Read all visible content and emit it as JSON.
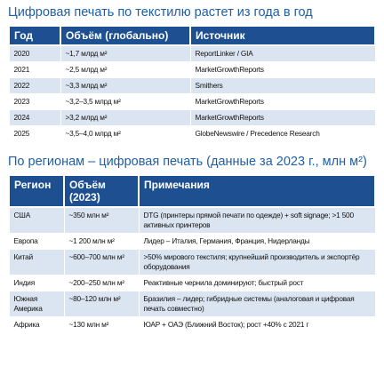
{
  "title": "Цифровая печать по текстилю растет из года в год",
  "table": {
    "headers": [
      "Год",
      "Объём (глобально)",
      "Источник"
    ],
    "rows": [
      [
        "2020",
        "~1,7 млрд м²",
        "ReportLinker / GIA"
      ],
      [
        "2021",
        "~2,5 млрд м²",
        "MarketGrowthReports"
      ],
      [
        "2022",
        "~3,3 млрд м²",
        "Smithers"
      ],
      [
        "2023",
        "~3,2–3,5 млрд м²",
        "MarketGrowthReports"
      ],
      [
        "2024",
        ">3,2 млрд м²",
        "MarketGrowthReports"
      ],
      [
        "2025",
        "~3,5–4,0 млрд м²",
        "GlobeNewswire / Precedence Research"
      ]
    ]
  },
  "title2": "По регионам – цифровая печать (данные за 2023 г., млн м²)",
  "table2": {
    "headers": [
      "Регион",
      "Объём (2023)",
      "Примечания"
    ],
    "rows": [
      [
        "США",
        "~350 млн м²",
        "DTG (принтеры прямой печати по одежде) + soft signage; >1 500 активных принтеров"
      ],
      [
        "Европа",
        "~1 200 млн м²",
        "Лидер – Италия, Германия, Франция, Нидерланды"
      ],
      [
        "Китай",
        "~600–700 млн м²",
        ">50% мирового текстиля; крупнейший производитель и экспортёр оборудования"
      ],
      [
        "Индия",
        "~200–250 млн м²",
        "Реактивные чернила доминируют; быстрый рост"
      ],
      [
        "Южная Америка",
        "~80–120 млн м²",
        "Бразилия – лидер; гибридные системы (аналоговая и цифровая печать совместно)"
      ],
      [
        "Африка",
        "~130 млн м²",
        "ЮАР + ОАЭ (Ближний Восток); рост +40% с 2021 г"
      ]
    ]
  }
}
